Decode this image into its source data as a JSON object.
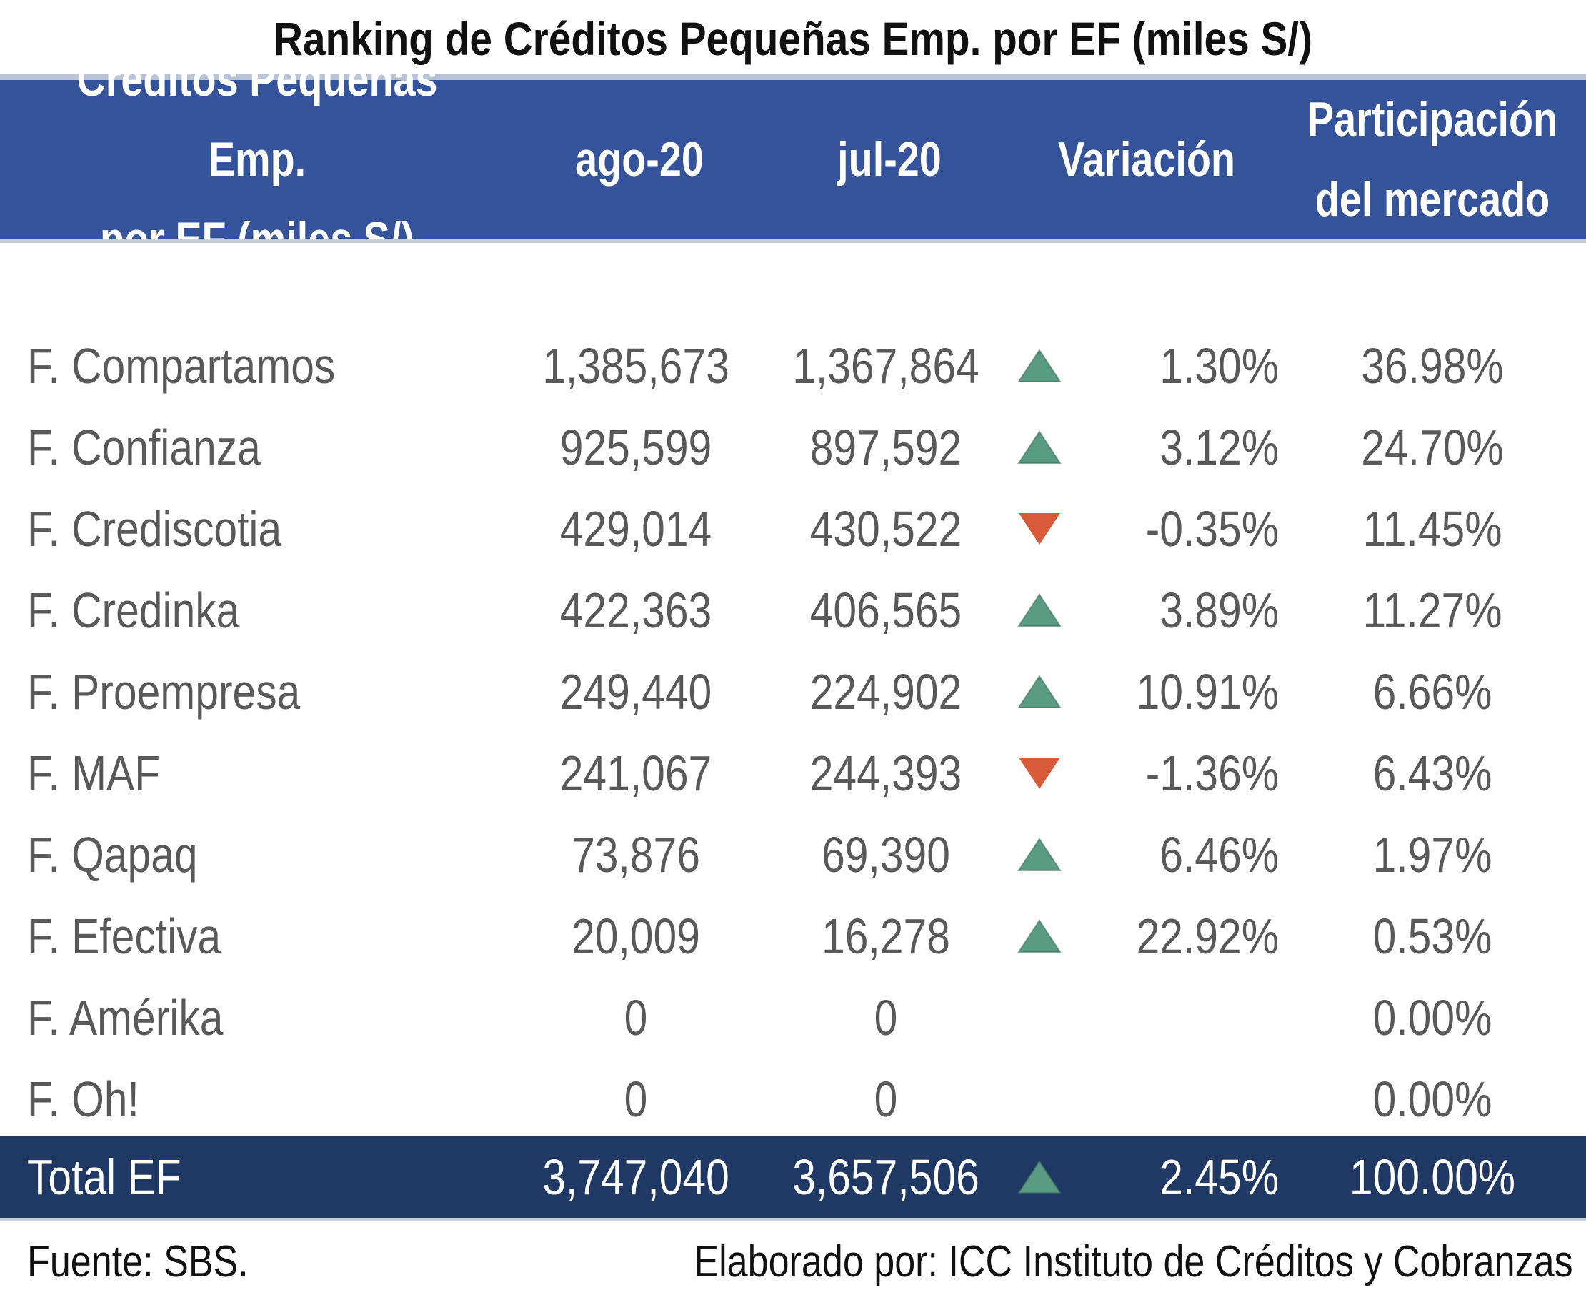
{
  "title": "Ranking de Créditos Pequeñas Emp. por EF (miles S/)",
  "header": {
    "name_line1": "Créditos Pequeñas Emp.",
    "name_line2": "por EF (miles S/)",
    "ago": "ago-20",
    "jul": "jul-20",
    "var": "Variación",
    "share_line1": "Participación",
    "share_line2": "del mercado"
  },
  "colors": {
    "header": "#34539a",
    "total": "#1f3864",
    "up": "#5a9b83",
    "down": "#d85a38"
  },
  "rows": [
    {
      "name": "F. Compartamos",
      "ago": "1,385,673",
      "jul": "1,367,864",
      "dir": "up",
      "var": "1.30%",
      "share": "36.98%"
    },
    {
      "name": "F. Confianza",
      "ago": "925,599",
      "jul": "897,592",
      "dir": "up",
      "var": "3.12%",
      "share": "24.70%"
    },
    {
      "name": "F. Crediscotia",
      "ago": "429,014",
      "jul": "430,522",
      "dir": "down",
      "var": "-0.35%",
      "share": "11.45%"
    },
    {
      "name": "F. Credinka",
      "ago": "422,363",
      "jul": "406,565",
      "dir": "up",
      "var": "3.89%",
      "share": "11.27%"
    },
    {
      "name": "F. Proempresa",
      "ago": "249,440",
      "jul": "224,902",
      "dir": "up",
      "var": "10.91%",
      "share": "6.66%"
    },
    {
      "name": "F. MAF",
      "ago": "241,067",
      "jul": "244,393",
      "dir": "down",
      "var": "-1.36%",
      "share": "6.43%"
    },
    {
      "name": "F. Qapaq",
      "ago": "73,876",
      "jul": "69,390",
      "dir": "up",
      "var": "6.46%",
      "share": "1.97%"
    },
    {
      "name": "F. Efectiva",
      "ago": "20,009",
      "jul": "16,278",
      "dir": "up",
      "var": "22.92%",
      "share": "0.53%"
    },
    {
      "name": "F. Amérika",
      "ago": "0",
      "jul": "0",
      "dir": "",
      "var": "",
      "share": "0.00%"
    },
    {
      "name": "F. Oh!",
      "ago": "0",
      "jul": "0",
      "dir": "",
      "var": "",
      "share": "0.00%"
    }
  ],
  "total": {
    "name": "Total EF",
    "ago": "3,747,040",
    "jul": "3,657,506",
    "dir": "up",
    "var": "2.45%",
    "share": "100.00%"
  },
  "footer": {
    "source": "Fuente: SBS.",
    "credit": "Elaborado por: ICC Instituto de Créditos y Cobranzas"
  }
}
